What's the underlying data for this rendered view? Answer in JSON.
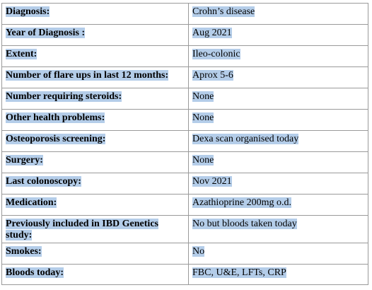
{
  "rows": [
    {
      "label": "Diagnosis:",
      "value": "Crohn’s disease"
    },
    {
      "label": "Year of Diagnosis :",
      "value": "Aug 2021"
    },
    {
      "label": "Extent:",
      "value": "Ileo-colonic"
    },
    {
      "label": "Number of flare ups in last 12 months:",
      "value": "Aprox 5-6"
    },
    {
      "label": "Number requiring steroids:",
      "value": "None"
    },
    {
      "label": "Other health problems:",
      "value": "None"
    },
    {
      "label": "Osteoporosis screening:",
      "value": "Dexa scan organised today"
    },
    {
      "label": "Surgery:",
      "value": "None"
    },
    {
      "label": "Last colonoscopy:",
      "value": "Nov 2021"
    },
    {
      "label": "Medication:",
      "value": "Azathioprine 200mg o.d."
    },
    {
      "label": "Previously included in IBD Genetics study:",
      "value": "No but bloods taken today"
    },
    {
      "label": "Smokes:",
      "value": "No"
    },
    {
      "label": "Bloods today:",
      "value": "FBC, U&E, LFTs, CRP"
    }
  ],
  "colors": {
    "highlight": "#b4cde9",
    "border": "#9a9a9a"
  }
}
